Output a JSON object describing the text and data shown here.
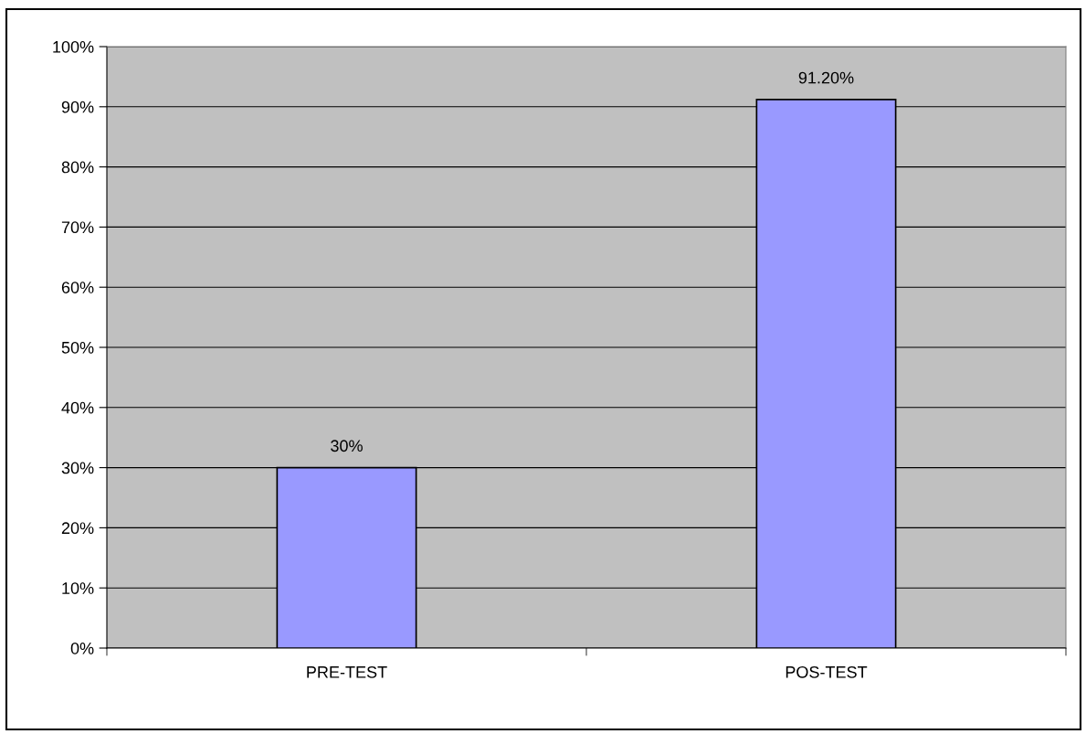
{
  "chart_data": {
    "type": "bar",
    "categories": [
      "PRE-TEST",
      "POS-TEST"
    ],
    "values": [
      30,
      91.2
    ],
    "color": "#9999ff",
    "value_labels": [
      "30%",
      "91.20%"
    ],
    "ylim": [
      0,
      100
    ],
    "yticks": [
      {
        "value": 0,
        "label": "0%"
      },
      {
        "value": 10,
        "label": "10%"
      },
      {
        "value": 20,
        "label": "20%"
      },
      {
        "value": 30,
        "label": "30%"
      },
      {
        "value": 40,
        "label": "40%"
      },
      {
        "value": 50,
        "label": "50%"
      },
      {
        "value": 60,
        "label": "60%"
      },
      {
        "value": 70,
        "label": "70%"
      },
      {
        "value": 80,
        "label": "80%"
      },
      {
        "value": 90,
        "label": "90%"
      },
      {
        "value": 100,
        "label": "100%"
      }
    ],
    "grid": "y"
  }
}
